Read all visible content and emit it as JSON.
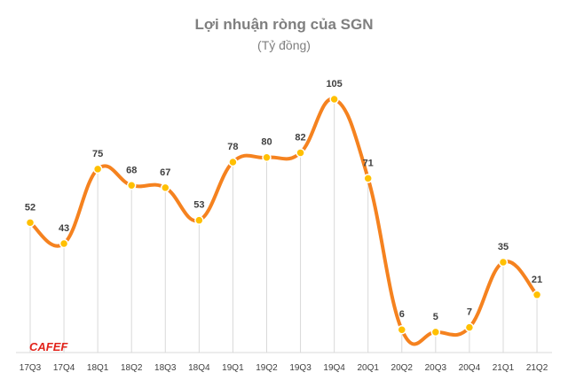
{
  "chart_data": {
    "type": "line",
    "title": "Lợi nhuận ròng của SGN",
    "subtitle": "(Tỷ đồng)",
    "categories": [
      "17Q3",
      "17Q4",
      "18Q1",
      "18Q2",
      "18Q3",
      "18Q4",
      "19Q1",
      "19Q2",
      "19Q3",
      "19Q4",
      "20Q1",
      "20Q2",
      "20Q3",
      "20Q4",
      "21Q1",
      "21Q2"
    ],
    "series": [
      {
        "name": "Lợi nhuận ròng",
        "values": [
          52,
          43,
          75,
          68,
          67,
          53,
          78,
          80,
          82,
          105,
          71,
          6,
          5,
          7,
          35,
          21
        ]
      }
    ],
    "ylim": [
      0,
      110
    ],
    "line_color": "#f5821f",
    "marker_color": "#ffc000",
    "grid": "vertical",
    "watermark": "CAFEF"
  }
}
